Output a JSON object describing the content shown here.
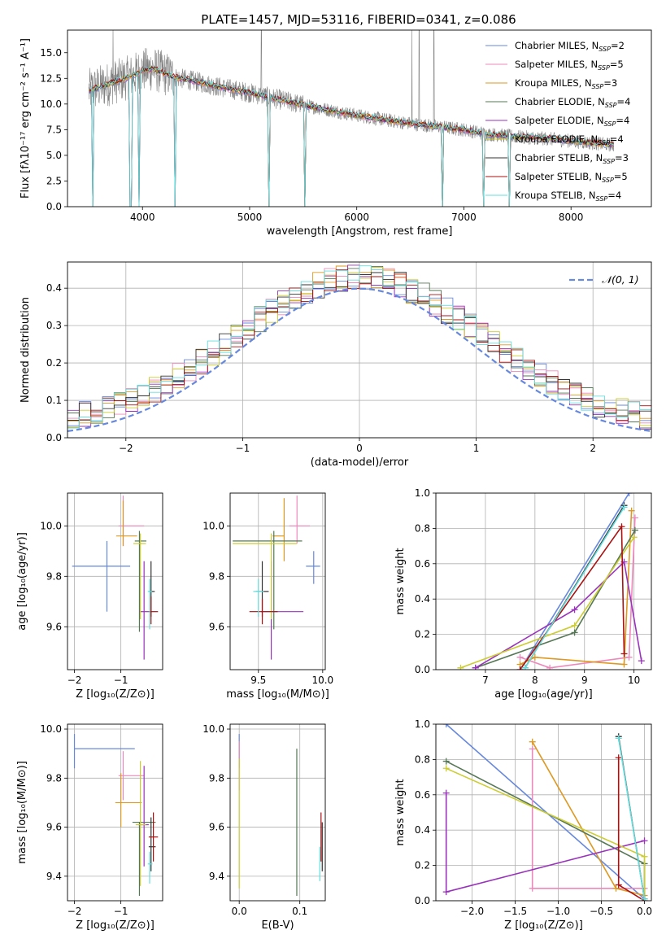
{
  "figure": {
    "title": "PLATE=1457, MJD=53116, FIBERID=0341, z=0.086"
  },
  "colors": {
    "chabrier_miles": "#6688dd",
    "salpeter_miles": "#ee88bb",
    "kroupa_miles": "#dd9922",
    "chabrier_elodie": "#557755",
    "salpeter_elodie": "#9933bb",
    "kroupa_elodie": "#cccc33",
    "chabrier_stelib": "#333333",
    "salpeter_stelib": "#aa1111",
    "kroupa_stelib": "#66dddd",
    "spectrum": "#808080",
    "grid": "#b0b0b0",
    "ref": "#6688dd"
  },
  "chart_data": [
    {
      "id": "spectrum",
      "type": "line",
      "title": "PLATE=1457, MJD=53116, FIBERID=0341, z=0.086",
      "xlabel": "wavelength [Angstrom, rest frame]",
      "ylabel": "Flux [fλ10⁻¹⁷ erg cm⁻² s⁻¹ A⁻¹]",
      "xlim": [
        3300,
        8750
      ],
      "ylim": [
        0,
        17.2
      ],
      "xticks": [
        4000,
        5000,
        6000,
        7000,
        8000
      ],
      "yticks": [
        0.0,
        2.5,
        5.0,
        7.5,
        10.0,
        12.5,
        15.0
      ],
      "grid": false,
      "legend_placement": "top-right",
      "series": [
        {
          "name": "Chabrier MILES",
          "nssp": "2",
          "color_key": "chabrier_miles"
        },
        {
          "name": "Salpeter MILES",
          "nssp": "5",
          "color_key": "salpeter_miles"
        },
        {
          "name": "Kroupa MILES",
          "nssp": "3",
          "color_key": "kroupa_miles"
        },
        {
          "name": "Chabrier ELODIE",
          "nssp": "4",
          "color_key": "chabrier_elodie"
        },
        {
          "name": "Salpeter ELODIE",
          "nssp": "4",
          "color_key": "salpeter_elodie"
        },
        {
          "name": "Kroupa ELODIE",
          "nssp": "4",
          "color_key": "kroupa_elodie"
        },
        {
          "name": "Chabrier STELIB",
          "nssp": "3",
          "color_key": "chabrier_stelib"
        },
        {
          "name": "Salpeter STELIB",
          "nssp": "5",
          "color_key": "salpeter_stelib"
        },
        {
          "name": "Kroupa STELIB",
          "nssp": "4",
          "color_key": "kroupa_stelib"
        }
      ],
      "continuum": {
        "x": [
          3500,
          3700,
          3900,
          4000,
          4100,
          4300,
          4500,
          4700,
          5000,
          5500,
          6000,
          6300,
          6500,
          7000,
          7200,
          7500,
          7800,
          8000,
          8300,
          8500
        ],
        "y": [
          11.3,
          12.0,
          12.7,
          13.3,
          13.4,
          12.6,
          12.2,
          11.7,
          11.1,
          9.9,
          8.9,
          8.4,
          8.1,
          7.5,
          7.1,
          6.8,
          6.6,
          6.4,
          6.1,
          5.9
        ]
      },
      "spectrum_range": [
        3500,
        8400
      ],
      "absorption_lines": [
        3540,
        3890,
        3970,
        4305,
        5175,
        5520,
        6800,
        7180,
        7420
      ],
      "emission_lines": [
        3725,
        5110,
        6515,
        6583,
        6720
      ]
    },
    {
      "id": "residuals",
      "type": "step",
      "xlabel": "(data-model)/error",
      "ylabel": "Normed distribution",
      "xlim": [
        -2.5,
        2.5
      ],
      "ylim": [
        0,
        0.47
      ],
      "xticks": [
        -2,
        -1,
        0,
        1,
        2
      ],
      "yticks": [
        0.0,
        0.1,
        0.2,
        0.3,
        0.4
      ],
      "grid": true,
      "legend_placement": "top-right",
      "reference_label": "𝒩(0, 1)",
      "bin_edges_start": -2.5,
      "bin_width": 0.1,
      "histogram": [
        0.045,
        0.05,
        0.052,
        0.048,
        0.06,
        0.08,
        0.095,
        0.11,
        0.14,
        0.17,
        0.19,
        0.18,
        0.2,
        0.17,
        0.19,
        0.21,
        0.24,
        0.23,
        0.26,
        0.28,
        0.27,
        0.31,
        0.32,
        0.33,
        0.3,
        0.35,
        0.34,
        0.37,
        0.36,
        0.38,
        0.39,
        0.38,
        0.39,
        0.4,
        0.39,
        0.38,
        0.37,
        0.39,
        0.36,
        0.35,
        0.34,
        0.33,
        0.32,
        0.31,
        0.3,
        0.28,
        0.29,
        0.26,
        0.25,
        0.24,
        0.23,
        0.22,
        0.2,
        0.19,
        0.17,
        0.16,
        0.15,
        0.13,
        0.12,
        0.1,
        0.11,
        0.1,
        0.09,
        0.08,
        0.09,
        0.08,
        0.07,
        0.06,
        0.06,
        0.05,
        0.05,
        0.05,
        0.045,
        0.045,
        0.04,
        0.04,
        0.035,
        0.04,
        0.035,
        0.03
      ]
    },
    {
      "id": "age_vs_Z",
      "type": "scatter",
      "xlabel": "Z [log₁₀(Z/Z⊙)]",
      "ylabel": "age  [log₁₀(age/yr)]",
      "xlim": [
        -2.15,
        -0.1
      ],
      "ylim": [
        9.43,
        10.13
      ],
      "xticks": [
        -2,
        -1
      ],
      "yticks": [
        9.6,
        9.8,
        10.0
      ],
      "grid": true,
      "points": [
        {
          "color_key": "chabrier_miles",
          "x": -1.3,
          "xerr": [
            0.75,
            0.5
          ],
          "y": 9.84,
          "yerr": [
            0.18,
            0.1
          ]
        },
        {
          "color_key": "salpeter_miles",
          "x": -0.95,
          "xerr": [
            0.1,
            0.45
          ],
          "y": 10.0,
          "yerr": [
            0.08,
            0.12
          ]
        },
        {
          "color_key": "kroupa_miles",
          "x": -0.95,
          "xerr": [
            0.15,
            0.3
          ],
          "y": 9.96,
          "yerr": [
            0.04,
            0.14
          ]
        },
        {
          "color_key": "chabrier_elodie",
          "x": -0.6,
          "xerr": [
            0.1,
            0.15
          ],
          "y": 9.94,
          "yerr": [
            0.36,
            0.04
          ]
        },
        {
          "color_key": "salpeter_elodie",
          "x": -0.5,
          "xerr": [
            0.1,
            0.1
          ],
          "y": 9.66,
          "yerr": [
            0.19,
            0.2
          ]
        },
        {
          "color_key": "kroupa_elodie",
          "x": -0.58,
          "xerr": [
            0.15,
            0.12
          ],
          "y": 9.93,
          "yerr": [
            0.3,
            0.04
          ]
        },
        {
          "color_key": "chabrier_stelib",
          "x": -0.35,
          "xerr": [
            0.05,
            0.08
          ],
          "y": 9.74,
          "yerr": [
            0.1,
            0.12
          ]
        },
        {
          "color_key": "salpeter_stelib",
          "x": -0.35,
          "xerr": [
            0.05,
            0.15
          ],
          "y": 9.66,
          "yerr": [
            0.05,
            0.06
          ]
        },
        {
          "color_key": "kroupa_stelib",
          "x": -0.38,
          "xerr": [
            0.04,
            0.05
          ],
          "y": 9.74,
          "yerr": [
            0.15,
            0.05
          ]
        }
      ]
    },
    {
      "id": "age_vs_mass",
      "type": "scatter",
      "xlabel": "mass [log₁₀(M/M⊙)]",
      "ylabel": "",
      "xlim": [
        9.28,
        10.02
      ],
      "ylim": [
        9.43,
        10.13
      ],
      "xticks": [
        9.5,
        10.0
      ],
      "yticks": [
        9.6,
        9.8,
        10.0
      ],
      "grid": true,
      "points": [
        {
          "color_key": "chabrier_miles",
          "x": 9.93,
          "xerr": [
            0.06,
            0.05
          ],
          "y": 9.84,
          "yerr": [
            0.07,
            0.06
          ]
        },
        {
          "color_key": "salpeter_miles",
          "x": 9.8,
          "xerr": [
            0.06,
            0.1
          ],
          "y": 10.0,
          "yerr": [
            0.07,
            0.12
          ]
        },
        {
          "color_key": "kroupa_miles",
          "x": 9.7,
          "xerr": [
            0.09,
            0.0
          ],
          "y": 9.96,
          "yerr": [
            0.1,
            0.15
          ]
        },
        {
          "color_key": "chabrier_elodie",
          "x": 9.62,
          "xerr": [
            0.32,
            0.22
          ],
          "y": 9.94,
          "yerr": [
            0.35,
            0.04
          ]
        },
        {
          "color_key": "salpeter_elodie",
          "x": 9.6,
          "xerr": [
            0.08,
            0.25
          ],
          "y": 9.66,
          "yerr": [
            0.19,
            0.2
          ]
        },
        {
          "color_key": "kroupa_elodie",
          "x": 9.6,
          "xerr": [
            0.3,
            0.2
          ],
          "y": 9.93,
          "yerr": [
            0.3,
            0.04
          ]
        },
        {
          "color_key": "chabrier_stelib",
          "x": 9.53,
          "xerr": [
            0.05,
            0.05
          ],
          "y": 9.74,
          "yerr": [
            0.1,
            0.12
          ]
        },
        {
          "color_key": "salpeter_stelib",
          "x": 9.53,
          "xerr": [
            0.1,
            0.12
          ],
          "y": 9.66,
          "yerr": [
            0.05,
            0.05
          ]
        },
        {
          "color_key": "kroupa_stelib",
          "x": 9.5,
          "xerr": [
            0.04,
            0.04
          ],
          "y": 9.74,
          "yerr": [
            0.1,
            0.05
          ]
        }
      ]
    },
    {
      "id": "weight_vs_age",
      "type": "line",
      "xlabel": "age  [log₁₀(age/yr)]",
      "ylabel": "mass weight",
      "xlim": [
        6.0,
        10.35
      ],
      "ylim": [
        0,
        1.0
      ],
      "xticks": [
        7,
        8,
        9,
        10
      ],
      "yticks": [
        0.0,
        0.2,
        0.4,
        0.6,
        0.8,
        1.0
      ],
      "grid": true,
      "series": [
        {
          "color_key": "chabrier_miles",
          "x": [
            7.7,
            9.9
          ],
          "y": [
            0.0,
            1.0
          ]
        },
        {
          "color_key": "salpeter_miles",
          "x": [
            7.7,
            8.3,
            9.9,
            10.02
          ],
          "y": [
            0.07,
            0.01,
            0.07,
            0.86
          ]
        },
        {
          "color_key": "kroupa_miles",
          "x": [
            7.7,
            8.0,
            9.8,
            9.95
          ],
          "y": [
            0.03,
            0.07,
            0.03,
            0.9
          ]
        },
        {
          "color_key": "chabrier_elodie",
          "x": [
            6.8,
            8.8,
            10.02
          ],
          "y": [
            0.01,
            0.21,
            0.79
          ]
        },
        {
          "color_key": "salpeter_elodie",
          "x": [
            6.8,
            8.8,
            9.8,
            10.15
          ],
          "y": [
            0.01,
            0.34,
            0.61,
            0.05
          ]
        },
        {
          "color_key": "kroupa_elodie",
          "x": [
            6.5,
            8.8,
            10.0
          ],
          "y": [
            0.01,
            0.25,
            0.75
          ]
        },
        {
          "color_key": "chabrier_stelib",
          "x": [
            7.8,
            9.8
          ],
          "y": [
            0.01,
            0.93
          ]
        },
        {
          "color_key": "salpeter_stelib",
          "x": [
            7.7,
            9.75,
            9.8
          ],
          "y": [
            0.0,
            0.81,
            0.09
          ]
        },
        {
          "color_key": "kroupa_stelib",
          "x": [
            7.8,
            9.8
          ],
          "y": [
            0.01,
            0.92
          ]
        }
      ]
    },
    {
      "id": "mass_vs_Z",
      "type": "scatter",
      "xlabel": "Z [log₁₀(Z/Z⊙)]",
      "ylabel": "mass [log₁₀(M/M⊙)]",
      "xlim": [
        -2.15,
        -0.1
      ],
      "ylim": [
        9.3,
        10.02
      ],
      "xticks": [
        -2,
        -1
      ],
      "yticks": [
        9.4,
        9.6,
        9.8,
        10.0
      ],
      "grid": true,
      "points": [
        {
          "color_key": "chabrier_miles",
          "x": -2.0,
          "xerr": [
            0.0,
            1.3
          ],
          "y": 9.92,
          "yerr": [
            0.08,
            0.06
          ]
        },
        {
          "color_key": "salpeter_miles",
          "x": -0.95,
          "xerr": [
            0.1,
            0.45
          ],
          "y": 9.81,
          "yerr": [
            0.1,
            0.1
          ]
        },
        {
          "color_key": "kroupa_miles",
          "x": -1.0,
          "xerr": [
            0.12,
            0.45
          ],
          "y": 9.7,
          "yerr": [
            0.1,
            0.12
          ]
        },
        {
          "color_key": "chabrier_elodie",
          "x": -0.6,
          "xerr": [
            0.15,
            0.35
          ],
          "y": 9.62,
          "yerr": [
            0.3,
            0.0
          ]
        },
        {
          "color_key": "salpeter_elodie",
          "x": -0.5,
          "xerr": [
            0.12,
            0.1
          ],
          "y": 9.61,
          "yerr": [
            0.17,
            0.24
          ]
        },
        {
          "color_key": "kroupa_elodie",
          "x": -0.58,
          "xerr": [
            0.1,
            0.12
          ],
          "y": 9.61,
          "yerr": [
            0.25,
            0.26
          ]
        },
        {
          "color_key": "chabrier_stelib",
          "x": -0.35,
          "xerr": [
            0.05,
            0.1
          ],
          "y": 9.52,
          "yerr": [
            0.1,
            0.12
          ]
        },
        {
          "color_key": "salpeter_stelib",
          "x": -0.3,
          "xerr": [
            0.1,
            0.1
          ],
          "y": 9.56,
          "yerr": [
            0.1,
            0.1
          ]
        },
        {
          "color_key": "kroupa_stelib",
          "x": -0.38,
          "xerr": [
            0.04,
            0.06
          ],
          "y": 9.45,
          "yerr": [
            0.08,
            0.05
          ]
        }
      ]
    },
    {
      "id": "mass_vs_ebv",
      "type": "scatter",
      "xlabel": "E(B-V)",
      "ylabel": "",
      "xlim": [
        -0.015,
        0.142
      ],
      "ylim": [
        9.3,
        10.02
      ],
      "xticks": [
        0.0,
        0.1
      ],
      "yticks": [
        9.4,
        9.6,
        9.8,
        10.0
      ],
      "grid": true,
      "points": [
        {
          "color_key": "chabrier_miles",
          "x": 0.0,
          "xerr": [
            0.0,
            0.0
          ],
          "y": 9.92,
          "yerr": [
            0.08,
            0.06
          ]
        },
        {
          "color_key": "salpeter_miles",
          "x": 0.0,
          "xerr": [
            0.0,
            0.0
          ],
          "y": 9.85,
          "yerr": [
            0.1,
            0.1
          ]
        },
        {
          "color_key": "kroupa_elodie",
          "x": 0.0,
          "xerr": [
            0.0,
            0.0
          ],
          "y": 9.6,
          "yerr": [
            0.25,
            0.28
          ]
        },
        {
          "color_key": "chabrier_elodie",
          "x": 0.095,
          "xerr": [
            0.0,
            0.0
          ],
          "y": 9.62,
          "yerr": [
            0.3,
            0.3
          ]
        },
        {
          "color_key": "salpeter_stelib",
          "x": 0.135,
          "xerr": [
            0.0,
            0.0
          ],
          "y": 9.56,
          "yerr": [
            0.1,
            0.1
          ]
        },
        {
          "color_key": "chabrier_stelib",
          "x": 0.137,
          "xerr": [
            0.0,
            0.0
          ],
          "y": 9.52,
          "yerr": [
            0.1,
            0.1
          ]
        },
        {
          "color_key": "kroupa_stelib",
          "x": 0.133,
          "xerr": [
            0.0,
            0.0
          ],
          "y": 9.45,
          "yerr": [
            0.07,
            0.07
          ]
        }
      ]
    },
    {
      "id": "weight_vs_Z",
      "type": "line",
      "xlabel": "Z [log₁₀(Z/Z⊙)]",
      "ylabel": "mass weight",
      "xlim": [
        -2.42,
        0.08
      ],
      "ylim": [
        0,
        1.0
      ],
      "xticks": [
        -2.0,
        -1.5,
        -1.0,
        -0.5,
        0.0
      ],
      "yticks": [
        0.0,
        0.2,
        0.4,
        0.6,
        0.8,
        1.0
      ],
      "grid": true,
      "series": [
        {
          "color_key": "chabrier_miles",
          "x": [
            -2.3,
            0.0
          ],
          "y": [
            1.0,
            0.01
          ]
        },
        {
          "color_key": "salpeter_miles",
          "x": [
            -1.3,
            -1.3,
            0.0
          ],
          "y": [
            0.86,
            0.07,
            0.07
          ]
        },
        {
          "color_key": "kroupa_miles",
          "x": [
            -1.3,
            -0.33,
            0.0
          ],
          "y": [
            0.9,
            0.07,
            0.03
          ]
        },
        {
          "color_key": "chabrier_elodie",
          "x": [
            -2.3,
            0.0,
            0.0
          ],
          "y": [
            0.79,
            0.21,
            0.01
          ]
        },
        {
          "color_key": "salpeter_elodie",
          "x": [
            -2.3,
            -2.3,
            0.0
          ],
          "y": [
            0.61,
            0.05,
            0.34
          ]
        },
        {
          "color_key": "kroupa_elodie",
          "x": [
            -2.3,
            0.0,
            0.0
          ],
          "y": [
            0.75,
            0.25,
            0.01
          ]
        },
        {
          "color_key": "chabrier_stelib",
          "x": [
            -0.3,
            0.0
          ],
          "y": [
            0.93,
            0.01
          ]
        },
        {
          "color_key": "salpeter_stelib",
          "x": [
            -0.3,
            -0.3,
            0.0
          ],
          "y": [
            0.81,
            0.09,
            0.0
          ]
        },
        {
          "color_key": "kroupa_stelib",
          "x": [
            -0.3,
            0.0
          ],
          "y": [
            0.92,
            0.01
          ]
        }
      ]
    }
  ]
}
